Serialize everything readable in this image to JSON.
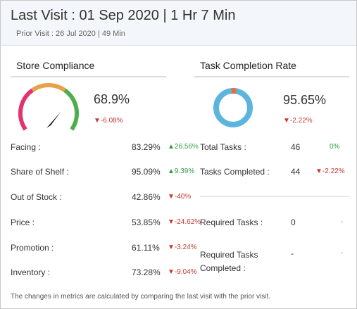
{
  "header": {
    "title": "Last Visit : 01 Sep 2020 | 1 Hr 7 Min",
    "subtitle": "Prior Visit : 26 Jul 2020 |  49 Min"
  },
  "store_compliance": {
    "title": "Store Compliance",
    "score": {
      "value": "68.9%",
      "change": "▼-6.08%"
    },
    "metrics": [
      {
        "label": "Facing :",
        "value": "83.29%",
        "change": "▲26.56%"
      },
      {
        "label": "Share of Shelf :",
        "value": "95.09%",
        "change": "▲9.39%"
      },
      {
        "label": "Out of Stock :",
        "value": "42.86%",
        "change": "▼-40%"
      },
      {
        "label": "Price :",
        "value": "53.85%",
        "change": "▼-24.62%"
      },
      {
        "label": "Promotion :",
        "value": "61.11%",
        "change": "▼-3.24%"
      },
      {
        "label": "Inventory :",
        "value": "73.28%",
        "change": "▼-9.04%"
      }
    ]
  },
  "task_completion": {
    "title": "Task Completion Rate",
    "score": {
      "value": "95.65%",
      "change": "▼-2.22%"
    },
    "rows": [
      {
        "label": "Total Tasks :",
        "value": "46",
        "change": "0%"
      },
      {
        "label": "Tasks Completed :",
        "value": "44",
        "change": "▼-2.22%"
      },
      {
        "label": "Required Tasks :",
        "value": "0",
        "change": "-"
      },
      {
        "label": "Required Tasks Completed :",
        "value": "-",
        "change": "-"
      }
    ]
  },
  "footnote": "The changes in metrics are calculated by comparing the last visit with the prior visit."
}
